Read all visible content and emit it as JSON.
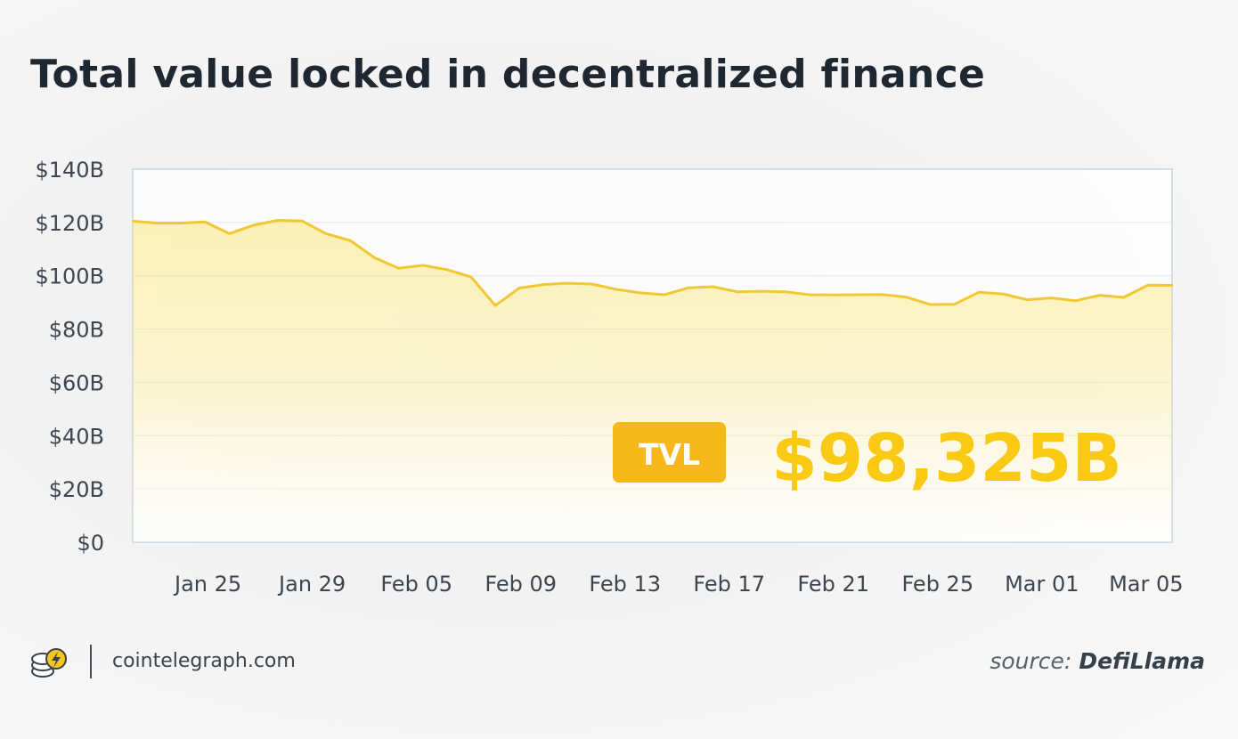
{
  "title": "Total value locked in decentralized finance",
  "tvl_badge": {
    "label": "TVL",
    "value": "$98,325B"
  },
  "footer": {
    "site": "cointelegraph.com",
    "source_prefix": "source:",
    "source_name": "DefiLlama",
    "logo_icon": "cointelegraph-coin-logo-icon"
  },
  "colors": {
    "line": "#f2c832",
    "area_top": "#fbe25e",
    "badge": "#f6b81a",
    "value_text": "#f9c914",
    "axis_text": "#3c4650",
    "plot_border": "#c5d4de"
  },
  "chart_data": {
    "type": "area",
    "title": "Total value locked in decentralized finance",
    "ylim": [
      0,
      140
    ],
    "y_ticks": [
      "$0",
      "$20B",
      "$40B",
      "$60B",
      "$80B",
      "$100B",
      "$120B",
      "$140B"
    ],
    "x_tick_labels": [
      "Jan 25",
      "Jan 29",
      "Feb 05",
      "Feb 09",
      "Feb 13",
      "Feb 17",
      "Feb 21",
      "Feb 25",
      "Mar 01",
      "Mar 05"
    ],
    "grid": true,
    "series": [
      {
        "values": [
          120.5,
          119.8,
          119.8,
          120.2,
          115.8,
          119.0,
          120.8,
          120.6,
          115.8,
          113.2,
          106.8,
          102.8,
          103.9,
          102.3,
          99.5,
          88.8,
          95.4,
          96.7,
          97.2,
          96.9,
          94.9,
          93.6,
          92.9,
          95.5,
          95.9,
          94.0,
          94.2,
          94.0,
          92.9,
          92.8,
          92.9,
          93.0,
          92.0,
          89.2,
          89.3,
          93.8,
          93.2,
          91.0,
          91.7,
          90.6,
          92.7,
          91.9,
          96.5,
          96.4
        ]
      }
    ]
  }
}
